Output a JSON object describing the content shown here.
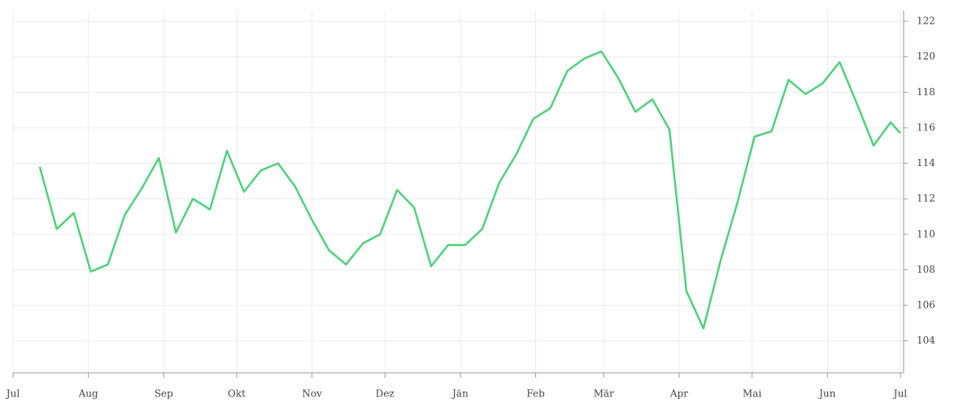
{
  "chart_data": {
    "type": "line",
    "x": [
      11,
      18,
      25,
      32,
      39,
      46,
      53,
      60,
      67,
      74,
      81,
      88,
      95,
      102,
      109,
      116,
      123,
      130,
      137,
      144,
      151,
      158,
      165,
      172,
      179,
      186,
      193,
      200,
      207,
      214,
      221,
      228,
      235,
      242,
      249,
      256,
      263,
      270,
      277,
      284,
      291,
      298,
      305,
      312,
      319,
      326,
      333,
      340,
      347,
      354,
      361,
      365
    ],
    "series": [
      {
        "color": "#4fd17c",
        "values": [
          113.8,
          110.3,
          111.2,
          107.9,
          108.3,
          111.1,
          112.6,
          114.3,
          110.1,
          112.0,
          111.4,
          114.7,
          112.4,
          113.6,
          114.0,
          112.7,
          110.8,
          109.1,
          108.3,
          109.5,
          110.0,
          112.5,
          111.5,
          108.2,
          109.4,
          109.4,
          110.3,
          112.9,
          114.5,
          116.5,
          117.1,
          119.2,
          119.9,
          120.3,
          118.8,
          116.9,
          117.6,
          115.9,
          106.8,
          104.7,
          108.5,
          111.8,
          115.5,
          115.8,
          118.7,
          117.9,
          118.5,
          119.7,
          117.4,
          115.0,
          116.3,
          115.7
        ]
      }
    ],
    "xlim": [
      0,
      365
    ],
    "xticks": [
      {
        "value": 0,
        "label": "Jul"
      },
      {
        "value": 31,
        "label": "Aug"
      },
      {
        "value": 62,
        "label": "Sep"
      },
      {
        "value": 92,
        "label": "Okt"
      },
      {
        "value": 123,
        "label": "Nov"
      },
      {
        "value": 153,
        "label": "Dez"
      },
      {
        "value": 184,
        "label": "Jän"
      },
      {
        "value": 215,
        "label": "Feb"
      },
      {
        "value": 243,
        "label": "Mär"
      },
      {
        "value": 274,
        "label": "Apr"
      },
      {
        "value": 304,
        "label": "Mai"
      },
      {
        "value": 335,
        "label": "Jun"
      },
      {
        "value": 365,
        "label": "Jul"
      }
    ],
    "ylim": [
      102.2,
      122.6
    ],
    "yticks": [
      104,
      106,
      108,
      110,
      112,
      114,
      116,
      118,
      120,
      122
    ],
    "grid": true
  }
}
